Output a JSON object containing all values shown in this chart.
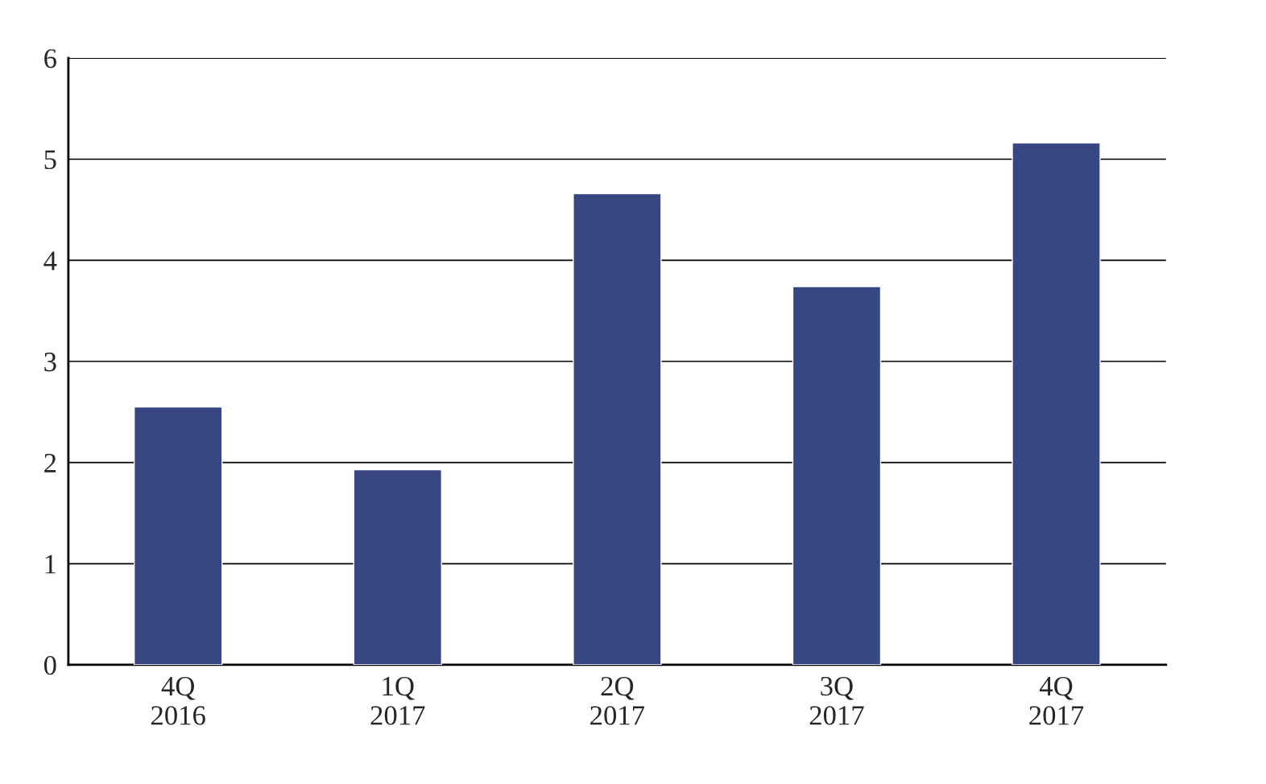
{
  "chart_data": {
    "type": "bar",
    "categories": [
      "4Q\n2016",
      "1Q\n2017",
      "2Q\n2017",
      "3Q\n2017",
      "4Q\n2017"
    ],
    "values": [
      2.55,
      1.93,
      4.66,
      3.74,
      5.16
    ],
    "color": "#384782",
    "ylim": [
      0,
      6
    ],
    "yticks": [
      0,
      1,
      2,
      3,
      4,
      5,
      6
    ],
    "grid": "y"
  }
}
